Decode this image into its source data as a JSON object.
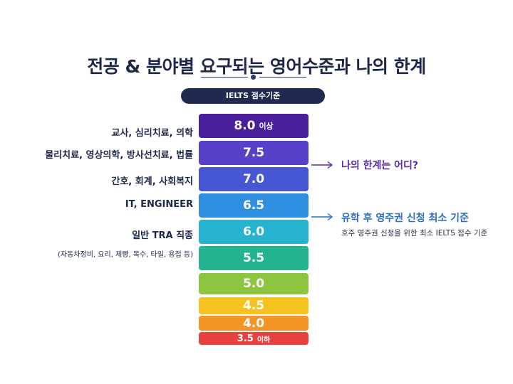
{
  "title": "전공 & 분야별 요구되는 영어수준과 나의 한계",
  "header_pill": "IELTS 점수기준",
  "bands": [
    {
      "score": "8.0",
      "suffix": "이상",
      "color": "#4a1f9c"
    },
    {
      "score": "7.5",
      "suffix": "",
      "color": "#5940c8"
    },
    {
      "score": "7.0",
      "suffix": "",
      "color": "#4657d6"
    },
    {
      "score": "6.5",
      "suffix": "",
      "color": "#2f8fe0"
    },
    {
      "score": "6.0",
      "suffix": "",
      "color": "#25b3d0"
    },
    {
      "score": "5.5",
      "suffix": "",
      "color": "#23b38f"
    },
    {
      "score": "5.0",
      "suffix": "",
      "color": "#8cc63f"
    },
    {
      "score": "4.5",
      "suffix": "",
      "color": "#f7c21f"
    },
    {
      "score": "4.0",
      "suffix": "",
      "color": "#f39423"
    },
    {
      "score": "3.5",
      "suffix": "이하",
      "color": "#e8413f"
    }
  ],
  "labels": {
    "teacher": "교사, 심리치료, 의학",
    "physio": "물리치료, 영상의학, 방사선치료, 법률",
    "nursing": "간호, 회계, 사회복지",
    "it": "IT, ENGINEER",
    "trade": "일반 TRA 직종",
    "trade_sub": "(자동차정비, 요리, 제빵, 목수, 타일, 용접 등)"
  },
  "callouts": {
    "limit": {
      "text": "나의 한계는 어디?",
      "color": "#5b2ba3"
    },
    "pr": {
      "text": "유학 후 영주권 신청 최소 기준",
      "sub": "호주 영주권 신청을 위한 최소 IELTS 점수 기준",
      "color": "#2d6fc0"
    }
  }
}
